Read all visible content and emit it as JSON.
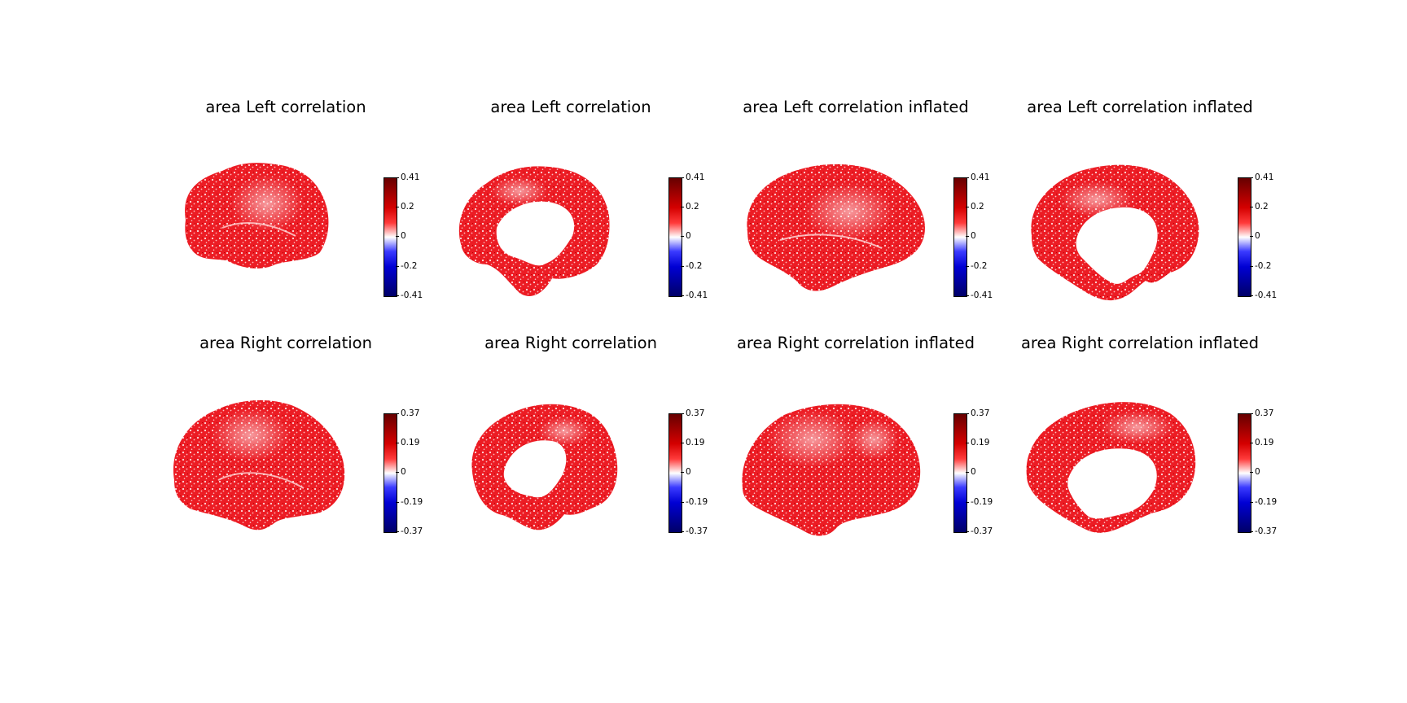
{
  "figure": {
    "rows": [
      {
        "colorbar": {
          "ticks": [
            "0.41",
            "0.2",
            "0",
            "-0.2",
            "-0.41"
          ],
          "min": -0.41,
          "max": 0.41
        },
        "panels": [
          {
            "title": "area Left correlation",
            "view": "lateral-pial"
          },
          {
            "title": "area Left correlation",
            "view": "medial-pial"
          },
          {
            "title": "area Left correlation inflated",
            "view": "lateral-inflated"
          },
          {
            "title": "area Left correlation inflated",
            "view": "medial-inflated"
          }
        ]
      },
      {
        "colorbar": {
          "ticks": [
            "0.37",
            "0.19",
            "0",
            "-0.19",
            "-0.37"
          ],
          "min": -0.37,
          "max": 0.37
        },
        "panels": [
          {
            "title": "area Right correlation",
            "view": "lateral-pial"
          },
          {
            "title": "area Right correlation",
            "view": "medial-pial"
          },
          {
            "title": "area Right correlation inflated",
            "view": "lateral-inflated"
          },
          {
            "title": "area Right correlation inflated",
            "view": "medial-inflated"
          }
        ]
      }
    ],
    "colormap": [
      "#670000",
      "#d40000",
      "#ff3b3b",
      "#ffffff",
      "#3b3bff",
      "#0000d4",
      "#000067"
    ],
    "surface_color": "#e8000b"
  }
}
